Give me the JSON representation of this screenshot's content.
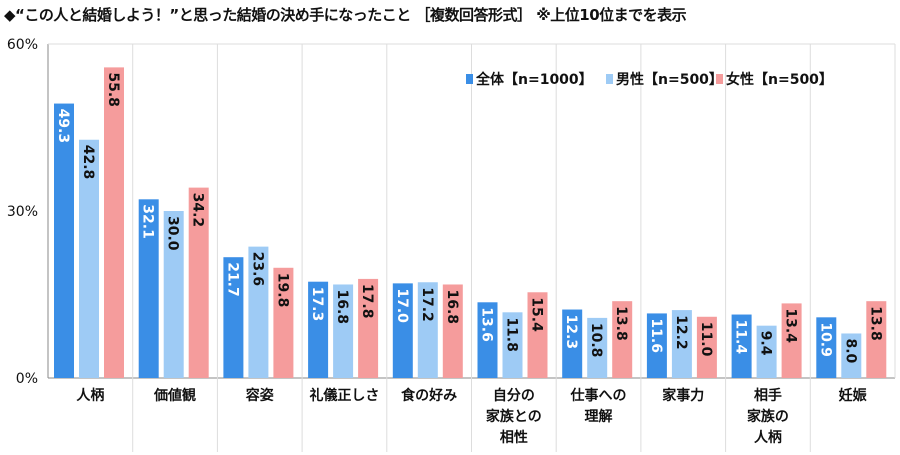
{
  "chart_data": {
    "type": "bar",
    "title": "◆“この人と結婚しよう！”と思った結婚の決め手になったこと ［複数回答形式］ ※上位10位までを表示",
    "categories": [
      "人柄",
      "価値観",
      "容姿",
      "礼儀正しさ",
      "食の好み",
      "自分の\n家族との\n相性",
      "仕事への\n理解",
      "家事力",
      "相手\n家族の\n人柄",
      "妊娠"
    ],
    "series": [
      {
        "name": "全体【n=1000】",
        "color": "#3a8ee6",
        "label_color": "#ffffff",
        "values": [
          49.3,
          32.1,
          21.7,
          17.3,
          17.0,
          13.6,
          12.3,
          11.6,
          11.4,
          10.9
        ]
      },
      {
        "name": "男性【n=500】",
        "color": "#9ecbf5",
        "label_color": "#111111",
        "values": [
          42.8,
          30.0,
          23.6,
          16.8,
          17.2,
          11.8,
          10.8,
          12.2,
          9.4,
          8.0
        ]
      },
      {
        "name": "女性【n=500】",
        "color": "#f59c9c",
        "label_color": "#111111",
        "values": [
          55.8,
          34.2,
          19.8,
          17.8,
          16.8,
          15.4,
          13.8,
          11.0,
          13.4,
          13.8
        ]
      }
    ],
    "yticks": [
      "0%",
      "30%",
      "60%"
    ],
    "ytick_values": [
      0,
      30,
      60
    ],
    "ylim": [
      0,
      60
    ],
    "xlabel": "",
    "ylabel": "",
    "grid": "vertical category separators",
    "legend": "top-right"
  }
}
